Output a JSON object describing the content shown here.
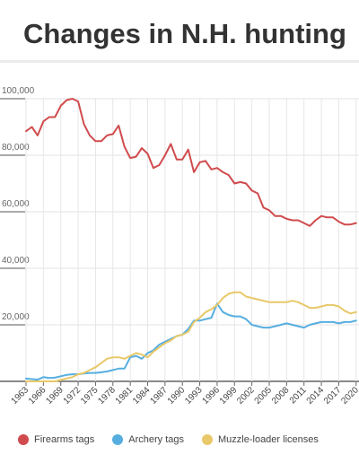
{
  "chart_data": {
    "type": "line",
    "title": "Changes in N.H. hunting",
    "xlabel": "",
    "ylabel": "",
    "grid": true,
    "legend": "bottom",
    "y_ticks": [
      0,
      20000,
      40000,
      60000,
      80000,
      100000
    ],
    "y_tick_labels": [
      "",
      "20,000",
      "40,000",
      "60,000",
      "80,000",
      "100,000"
    ],
    "x_ticks": [
      1963,
      1966,
      1969,
      1972,
      1975,
      1978,
      1981,
      1984,
      1987,
      1990,
      1993,
      1996,
      1999,
      2002,
      2005,
      2008,
      2011,
      2014,
      2017,
      2020
    ],
    "x": [
      1963,
      1964,
      1965,
      1966,
      1967,
      1968,
      1969,
      1970,
      1971,
      1972,
      1973,
      1974,
      1975,
      1976,
      1977,
      1978,
      1979,
      1980,
      1981,
      1982,
      1983,
      1984,
      1985,
      1986,
      1987,
      1988,
      1989,
      1990,
      1991,
      1992,
      1993,
      1994,
      1995,
      1996,
      1997,
      1998,
      1999,
      2000,
      2001,
      2002,
      2003,
      2004,
      2005,
      2006,
      2007,
      2008,
      2009,
      2010,
      2011,
      2012,
      2013,
      2014,
      2015,
      2016,
      2017,
      2018,
      2019,
      2020
    ],
    "series": [
      {
        "name": "Firearms tags",
        "color": "#d04b4d",
        "values": [
          88500,
          90000,
          87000,
          92000,
          93500,
          93500,
          97500,
          99500,
          100000,
          99000,
          91000,
          87000,
          85000,
          85000,
          87000,
          87500,
          90500,
          83000,
          79000,
          79500,
          82500,
          80500,
          75500,
          76500,
          80000,
          84000,
          78500,
          78500,
          82000,
          74000,
          77500,
          78000,
          75000,
          75500,
          74000,
          73000,
          70000,
          70500,
          70000,
          67500,
          66500,
          61500,
          60500,
          58500,
          58500,
          57500,
          57000,
          57000,
          56000,
          55000,
          57000,
          58500,
          58000,
          58000,
          56500,
          55500,
          55500,
          56000
        ]
      },
      {
        "name": "Archery tags",
        "color": "#56aee0",
        "values": [
          1000,
          800,
          600,
          1500,
          1200,
          1300,
          1800,
          2300,
          2500,
          2500,
          2800,
          3000,
          3000,
          3200,
          3500,
          4000,
          4500,
          4500,
          8500,
          9000,
          8000,
          10000,
          11000,
          13000,
          14000,
          15000,
          16000,
          16500,
          18500,
          21500,
          21500,
          22000,
          22500,
          27500,
          24500,
          23500,
          23000,
          23000,
          22000,
          20000,
          19500,
          19000,
          19000,
          19500,
          20000,
          20500,
          20000,
          19500,
          19000,
          20000,
          20500,
          21000,
          21000,
          21000,
          20500,
          21000,
          21000,
          21500
        ]
      },
      {
        "name": "Muzzle-loader licenses",
        "color": "#e8c868",
        "values": [
          0,
          0,
          0,
          0,
          0,
          0,
          500,
          1000,
          1500,
          2500,
          3000,
          4000,
          5000,
          6500,
          8000,
          8500,
          8500,
          8000,
          9000,
          10000,
          9500,
          8500,
          10500,
          12000,
          13500,
          14500,
          16000,
          16500,
          17500,
          21000,
          22500,
          24500,
          25500,
          27000,
          29500,
          31000,
          31500,
          31500,
          30000,
          29500,
          29000,
          28500,
          28000,
          28000,
          28000,
          28000,
          28500,
          28000,
          27000,
          26000,
          26000,
          26500,
          27000,
          27000,
          26500,
          25000,
          24000,
          24500
        ]
      }
    ],
    "legend_entries": [
      "Firearms tags",
      "Archery tags",
      "Muzzle-loader licenses"
    ]
  }
}
